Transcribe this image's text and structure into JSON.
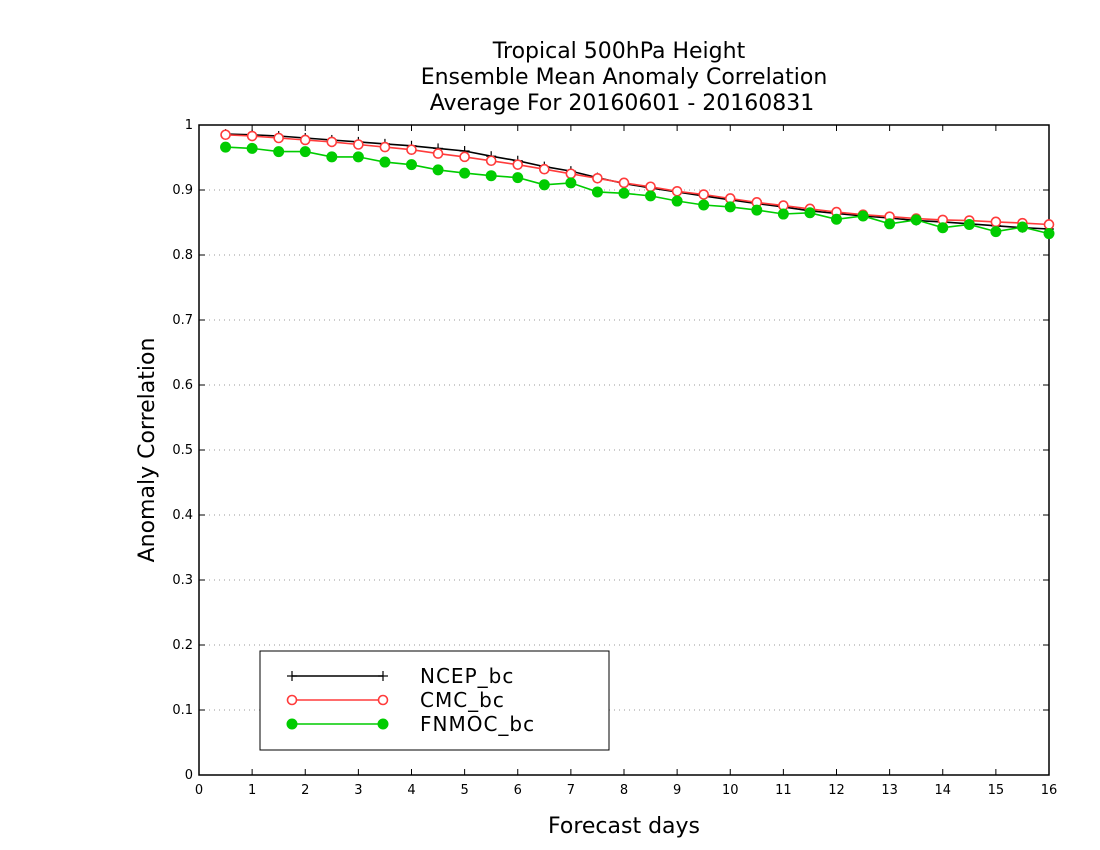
{
  "chart_data": {
    "type": "line",
    "title": [
      "Tropical 500hPa Height",
      "Ensemble Mean Anomaly Correlation",
      "Average For 20160601 - 20160831"
    ],
    "xlabel": "Forecast days",
    "ylabel": "Anomaly Correlation",
    "xlim": [
      0,
      16
    ],
    "ylim": [
      0,
      1
    ],
    "xticks": [
      "0",
      "1",
      "2",
      "3",
      "4",
      "5",
      "6",
      "7",
      "8",
      "9",
      "10",
      "11",
      "12",
      "13",
      "14",
      "15",
      "16"
    ],
    "yticks": [
      "0",
      "0.1",
      "0.2",
      "0.3",
      "0.4",
      "0.5",
      "0.6",
      "0.7",
      "0.8",
      "0.9",
      "1"
    ],
    "grid": "horizontal dotted",
    "legend_position": "bottom-left",
    "x": [
      0.5,
      1,
      1.5,
      2,
      2.5,
      3,
      3.5,
      4,
      4.5,
      5,
      5.5,
      6,
      6.5,
      7,
      7.5,
      8,
      8.5,
      9,
      9.5,
      10,
      10.5,
      11,
      11.5,
      12,
      12.5,
      13,
      13.5,
      14,
      14.5,
      15,
      15.5,
      16
    ],
    "series": [
      {
        "name": "NCEP_bc",
        "color": "#000000",
        "marker": "plus",
        "values": [
          0.986,
          0.985,
          0.983,
          0.98,
          0.977,
          0.974,
          0.971,
          0.968,
          0.964,
          0.96,
          0.952,
          0.945,
          0.936,
          0.929,
          0.919,
          0.91,
          0.903,
          0.897,
          0.891,
          0.885,
          0.879,
          0.874,
          0.868,
          0.864,
          0.86,
          0.857,
          0.853,
          0.851,
          0.848,
          0.845,
          0.842,
          0.84
        ]
      },
      {
        "name": "CMC_bc",
        "color": "#ff3b3b",
        "marker": "open-circle",
        "values": [
          0.985,
          0.983,
          0.98,
          0.977,
          0.974,
          0.97,
          0.966,
          0.962,
          0.956,
          0.951,
          0.945,
          0.939,
          0.932,
          0.925,
          0.918,
          0.911,
          0.905,
          0.898,
          0.893,
          0.887,
          0.881,
          0.876,
          0.871,
          0.866,
          0.862,
          0.859,
          0.856,
          0.854,
          0.853,
          0.851,
          0.849,
          0.847
        ]
      },
      {
        "name": "FNMOC_bc",
        "color": "#00cc00",
        "marker": "filled-circle",
        "values": [
          0.966,
          0.964,
          0.959,
          0.959,
          0.951,
          0.951,
          0.943,
          0.939,
          0.931,
          0.926,
          0.922,
          0.919,
          0.908,
          0.911,
          0.897,
          0.895,
          0.891,
          0.883,
          0.877,
          0.874,
          0.869,
          0.863,
          0.865,
          0.855,
          0.86,
          0.848,
          0.854,
          0.842,
          0.847,
          0.836,
          0.843,
          0.833
        ]
      }
    ]
  }
}
